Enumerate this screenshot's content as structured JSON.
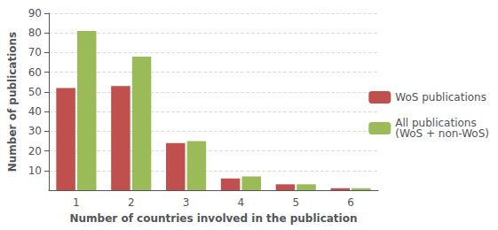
{
  "chart_data": {
    "type": "bar",
    "categories": [
      1,
      2,
      3,
      4,
      5,
      6
    ],
    "series": [
      {
        "name": "WoS publications",
        "color": "#c0504d",
        "values": [
          52,
          53,
          24,
          6,
          3,
          1
        ]
      },
      {
        "name": "All publications\n(WoS + non-WoS)",
        "color": "#9bbb59",
        "values": [
          81,
          68,
          25,
          7,
          3,
          1
        ]
      }
    ],
    "xlabel": "Number of countries involved in the publication",
    "ylabel": "Number of publications",
    "ylim": [
      0,
      90
    ],
    "yticks": [
      10,
      20,
      30,
      40,
      50,
      60,
      70,
      80,
      90
    ],
    "grid": true,
    "legend": "right"
  }
}
